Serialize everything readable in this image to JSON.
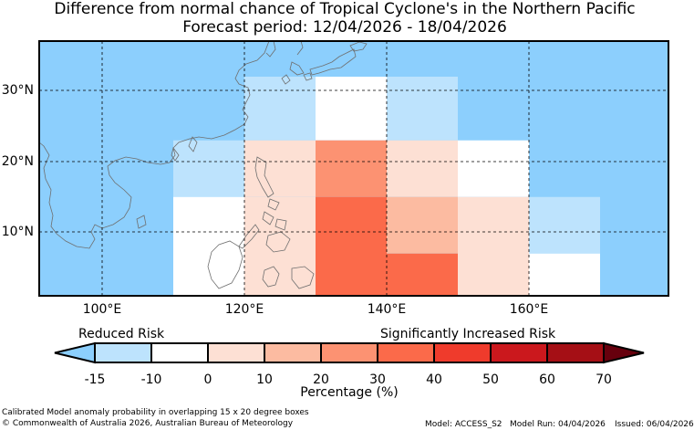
{
  "title": {
    "line1": "Difference from normal chance of Tropical Cyclone's in the Northern Pacific",
    "line2": "Forecast period: 12/04/2026 - 18/04/2026"
  },
  "map": {
    "background_color": "#8ccffd",
    "lat_labels": [
      "30°N",
      "20°N",
      "10°N"
    ],
    "lon_labels": [
      "100°E",
      "120°E",
      "140°E",
      "160°E"
    ],
    "cells": [
      {
        "lon": [
          120,
          130
        ],
        "lat": [
          23,
          32
        ],
        "pct": -15
      },
      {
        "lon": [
          130,
          140
        ],
        "lat": [
          23,
          32
        ],
        "pct": -10
      },
      {
        "lon": [
          140,
          150
        ],
        "lat": [
          23,
          32
        ],
        "pct": -15
      },
      {
        "lon": [
          110,
          120
        ],
        "lat": [
          15,
          23
        ],
        "pct": -15
      },
      {
        "lon": [
          120,
          130
        ],
        "lat": [
          15,
          23
        ],
        "pct": 0
      },
      {
        "lon": [
          130,
          140
        ],
        "lat": [
          15,
          23
        ],
        "pct": 20
      },
      {
        "lon": [
          140,
          150
        ],
        "lat": [
          15,
          23
        ],
        "pct": 0
      },
      {
        "lon": [
          150,
          160
        ],
        "lat": [
          15,
          23
        ],
        "pct": -10
      },
      {
        "lon": [
          110,
          120
        ],
        "lat": [
          0,
          15
        ],
        "pct": -10
      },
      {
        "lon": [
          120,
          130
        ],
        "lat": [
          0,
          15
        ],
        "pct": 0
      },
      {
        "lon": [
          130,
          140
        ],
        "lat": [
          0,
          15
        ],
        "pct": 30
      },
      {
        "lon": [
          140,
          150
        ],
        "lat": [
          7,
          15
        ],
        "pct": 10
      },
      {
        "lon": [
          140,
          150
        ],
        "lat": [
          0,
          7
        ],
        "pct": 30
      },
      {
        "lon": [
          150,
          160
        ],
        "lat": [
          0,
          15
        ],
        "pct": 0
      },
      {
        "lon": [
          160,
          170
        ],
        "lat": [
          7,
          15
        ],
        "pct": -15
      },
      {
        "lon": [
          160,
          170
        ],
        "lat": [
          0,
          7
        ],
        "pct": -10
      }
    ]
  },
  "legend": {
    "reduced_label": "Reduced Risk",
    "increased_label": "Significantly Increased Risk",
    "unit_label": "Percentage (%)",
    "ticks": [
      "-15",
      "-10",
      "0",
      "10",
      "20",
      "30",
      "40",
      "50",
      "60",
      "70"
    ],
    "colors": [
      "#8ccffd",
      "#bde3fd",
      "#ffffff",
      "#fde0d4",
      "#fcbba1",
      "#fc9272",
      "#fb6a4a",
      "#ef3b2c",
      "#cb181d",
      "#a50f15",
      "#67000d"
    ]
  },
  "footer": {
    "desc": "Calibrated Model anomaly probability in overlapping 15 x 20 degree boxes",
    "copyright": "© Commonwealth of Australia 2026, Australian Bureau of Meteorology",
    "model": "Model: ACCESS_S2",
    "run": "Model Run: 04/04/2026",
    "issued": "Issued: 06/04/2026"
  }
}
